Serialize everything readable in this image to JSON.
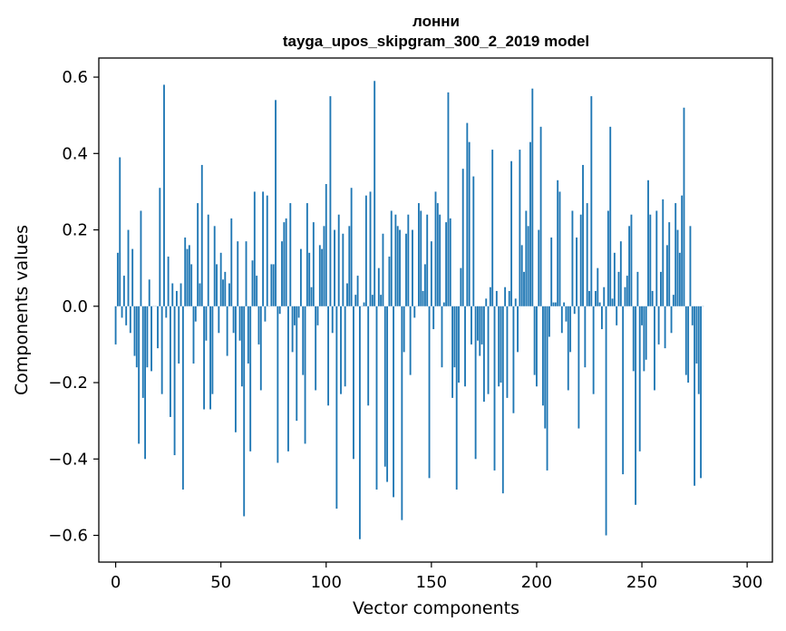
{
  "chart_data": {
    "type": "bar",
    "title": "лонни",
    "subtitle": "tayga_upos_skipgram_300_2_2019 model",
    "xlabel": "Vector components",
    "ylabel": "Components values",
    "xlim": [
      -8,
      312
    ],
    "ylim": [
      -0.67,
      0.65
    ],
    "xticks": [
      0,
      50,
      100,
      150,
      200,
      250,
      300
    ],
    "xtick_labels": [
      "0",
      "50",
      "100",
      "150",
      "200",
      "250",
      "300"
    ],
    "yticks": [
      -0.6,
      -0.4,
      -0.2,
      0.0,
      0.2,
      0.4,
      0.6
    ],
    "ytick_labels": [
      "−0.6",
      "−0.4",
      "−0.2",
      "0.0",
      "0.2",
      "0.4",
      "0.6"
    ],
    "bar_color": "#1f77b4",
    "grid": false,
    "legend": "none",
    "values": [
      -0.1,
      0.14,
      0.39,
      -0.03,
      0.08,
      -0.05,
      0.2,
      -0.07,
      0.15,
      -0.13,
      -0.16,
      -0.36,
      0.25,
      -0.24,
      -0.4,
      -0.16,
      0.07,
      -0.17,
      0.0,
      0.0,
      -0.11,
      0.31,
      -0.23,
      0.58,
      -0.03,
      0.13,
      -0.29,
      0.06,
      -0.39,
      0.04,
      -0.15,
      0.06,
      -0.48,
      0.18,
      0.15,
      0.16,
      0.11,
      -0.15,
      -0.04,
      0.27,
      0.06,
      0.37,
      -0.27,
      -0.09,
      0.24,
      -0.27,
      -0.23,
      0.21,
      0.11,
      -0.07,
      0.14,
      0.07,
      0.09,
      -0.13,
      0.06,
      0.23,
      -0.07,
      -0.33,
      0.17,
      -0.09,
      -0.21,
      -0.55,
      0.17,
      -0.15,
      -0.38,
      0.12,
      0.3,
      0.08,
      -0.1,
      -0.22,
      0.3,
      -0.04,
      0.29,
      0.0,
      0.11,
      0.11,
      0.54,
      -0.41,
      -0.02,
      0.17,
      0.22,
      0.23,
      -0.38,
      0.27,
      -0.12,
      -0.05,
      -0.3,
      -0.03,
      0.15,
      -0.18,
      -0.36,
      0.27,
      0.14,
      0.05,
      0.22,
      -0.22,
      -0.05,
      0.16,
      0.15,
      0.21,
      0.32,
      -0.26,
      0.55,
      -0.07,
      0.2,
      -0.53,
      0.24,
      -0.23,
      0.19,
      -0.21,
      0.06,
      0.21,
      0.31,
      -0.4,
      0.03,
      0.08,
      -0.61,
      0.0,
      0.01,
      0.29,
      -0.26,
      0.3,
      0.03,
      0.59,
      -0.48,
      0.1,
      0.03,
      0.19,
      -0.42,
      -0.46,
      0.13,
      0.25,
      -0.5,
      0.24,
      0.21,
      0.2,
      -0.56,
      -0.12,
      0.19,
      0.24,
      -0.18,
      0.2,
      -0.03,
      0.0,
      0.27,
      0.25,
      0.04,
      0.11,
      0.24,
      -0.45,
      0.17,
      -0.06,
      0.3,
      0.27,
      0.24,
      -0.16,
      0.01,
      0.22,
      0.56,
      0.23,
      -0.24,
      -0.16,
      -0.48,
      -0.2,
      0.1,
      0.36,
      -0.21,
      0.48,
      0.43,
      -0.1,
      0.34,
      -0.4,
      -0.09,
      -0.13,
      -0.1,
      -0.25,
      0.02,
      -0.23,
      0.05,
      0.41,
      -0.43,
      0.04,
      -0.21,
      -0.2,
      -0.49,
      0.05,
      -0.24,
      0.04,
      0.38,
      -0.28,
      0.02,
      -0.12,
      0.41,
      0.16,
      0.09,
      0.25,
      0.21,
      0.43,
      0.57,
      -0.18,
      -0.21,
      0.2,
      0.47,
      -0.26,
      -0.32,
      -0.43,
      -0.08,
      0.18,
      0.01,
      0.01,
      0.33,
      0.3,
      -0.07,
      0.01,
      -0.04,
      -0.22,
      -0.12,
      0.25,
      -0.02,
      0.18,
      -0.32,
      0.24,
      0.37,
      -0.16,
      0.27,
      0.04,
      0.55,
      -0.23,
      0.04,
      0.1,
      0.01,
      -0.06,
      0.05,
      -0.6,
      0.25,
      0.47,
      0.02,
      0.14,
      -0.05,
      0.09,
      0.17,
      -0.44,
      0.05,
      0.08,
      0.21,
      0.24,
      -0.17,
      -0.52,
      0.09,
      -0.38,
      -0.05,
      -0.17,
      -0.14,
      0.33,
      0.24,
      0.04,
      -0.22,
      0.25,
      -0.1,
      0.09,
      0.28,
      -0.11,
      0.16,
      0.22,
      -0.07,
      0.03,
      0.27,
      0.2,
      0.14,
      0.29,
      0.52,
      -0.18,
      -0.2,
      0.21,
      -0.05,
      -0.47,
      -0.15,
      -0.23,
      -0.45,
      0.0
    ]
  }
}
